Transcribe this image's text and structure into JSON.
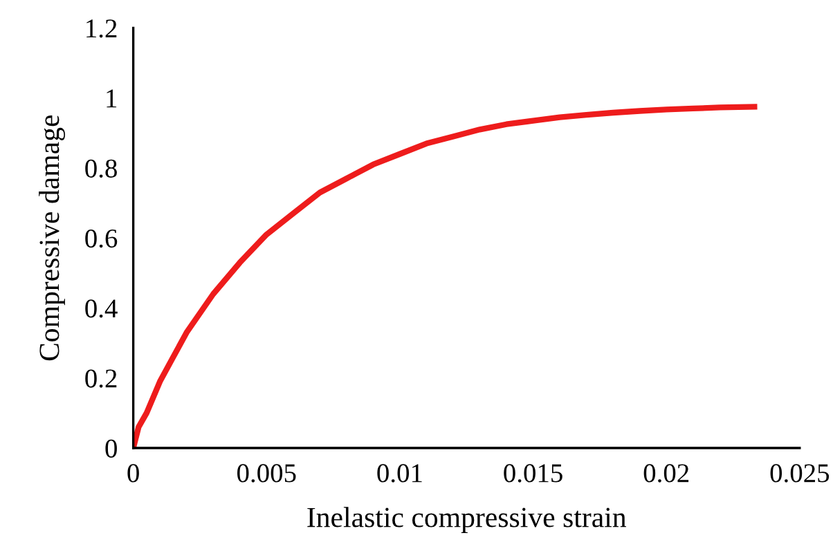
{
  "chart_data": {
    "type": "line",
    "xlabel": "Inelastic compressive strain",
    "ylabel": "Compressive damage",
    "xlim": [
      0,
      0.025
    ],
    "xticks": [
      0,
      0.005,
      0.01,
      0.015,
      0.02,
      0.025
    ],
    "ylim": [
      0,
      1.2
    ],
    "yticks": [
      0,
      0.2,
      0.4,
      0.6,
      0.8,
      1,
      1.2
    ],
    "grid": false,
    "marker": "none",
    "line_style": "solid",
    "series": [
      {
        "color": "#ee1c1c",
        "x": [
          0,
          0.0002,
          0.0005,
          0.001,
          0.002,
          0.003,
          0.004,
          0.005,
          0.006,
          0.007,
          0.008,
          0.009,
          0.01,
          0.011,
          0.012,
          0.013,
          0.014,
          0.015,
          0.016,
          0.017,
          0.018,
          0.019,
          0.02,
          0.021,
          0.022,
          0.0233
        ],
        "values": [
          0,
          0.06,
          0.1,
          0.19,
          0.33,
          0.44,
          0.53,
          0.61,
          0.67,
          0.73,
          0.77,
          0.81,
          0.84,
          0.87,
          0.89,
          0.91,
          0.925,
          0.935,
          0.945,
          0.952,
          0.958,
          0.963,
          0.967,
          0.97,
          0.973,
          0.975
        ]
      }
    ]
  }
}
